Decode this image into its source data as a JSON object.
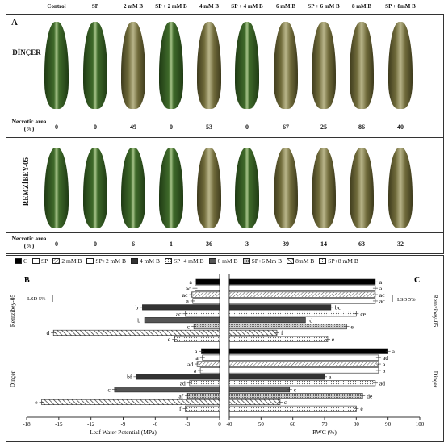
{
  "columns": [
    "Control",
    "SP",
    "2 mM B",
    "SP + 2 mM B",
    "4 mM B",
    "SP + 4 mM B",
    "6 mM B",
    "SP + 6 mM B",
    "8 mM B",
    "SP + 8mM B"
  ],
  "panel_a": {
    "label": "A",
    "rows": [
      {
        "name": "DİNÇER",
        "necrotic_label": "Necrotic area (%)",
        "values": [
          "0",
          "0",
          "49",
          "0",
          "53",
          "0",
          "67",
          "25",
          "86",
          "40"
        ]
      },
      {
        "name": "REMZİBEY-05",
        "necrotic_label": "Necrotic area (%)",
        "values": [
          "0",
          "0",
          "6",
          "1",
          "36",
          "3",
          "39",
          "14",
          "63",
          "32"
        ]
      }
    ]
  },
  "legend": [
    "C",
    "SP",
    "2 mM B",
    "SP+2 mM B",
    "4 mM B",
    "SP+4 mM B",
    "6 mM B",
    "SP+6 Mm B",
    "8mM B",
    "SP+8 mM B"
  ],
  "panel_b": {
    "label": "B",
    "lsd": "LSD 5%",
    "xlabel": "Leaf Water Potential (MPa)",
    "group_top": "Remzibey-05",
    "group_bottom": "Dinçer"
  },
  "panel_c": {
    "label": "C",
    "lsd": "LSD 5%",
    "xlabel": "RWC (%)",
    "group_top": "Remzibey-05",
    "group_bottom": "Dinçer"
  },
  "chart_data": [
    {
      "type": "bar",
      "title": "B",
      "xlabel": "Leaf Water Potential (MPa)",
      "xlim": [
        -18,
        0
      ],
      "xticks": [
        "-18",
        "-15",
        "-12",
        "-9",
        "-6",
        "-3",
        "0"
      ],
      "categories": [
        "C",
        "SP",
        "2 mM B",
        "SP+2 mM B",
        "4 mM B",
        "SP+4 mM B",
        "6 mM B",
        "SP+6 Mm B",
        "8mM B",
        "SP+8 mM B"
      ],
      "series": [
        {
          "name": "Remzibey-05",
          "values": [
            -2.2,
            -2.3,
            -2.6,
            -2.5,
            -7.2,
            -3.2,
            -7.0,
            -2.4,
            -15.5,
            -4.2
          ],
          "letters": [
            "a",
            "ac",
            "ac",
            "a",
            "b",
            "ac",
            "b",
            "c",
            "d",
            "e"
          ]
        },
        {
          "name": "Dinçer",
          "values": [
            -1.7,
            -1.6,
            -2.1,
            -1.8,
            -7.8,
            -2.8,
            -9.8,
            -3.0,
            -16.6,
            -3.2
          ],
          "letters": [
            "a",
            "a",
            "ad",
            "a",
            "bf",
            "ad",
            "c",
            "af",
            "e",
            "f"
          ]
        }
      ]
    },
    {
      "type": "bar",
      "title": "C",
      "xlabel": "RWC (%)",
      "xlim": [
        40,
        100
      ],
      "xticks": [
        "40",
        "50",
        "60",
        "70",
        "80",
        "90",
        "100"
      ],
      "categories": [
        "C",
        "SP",
        "2 mM B",
        "SP+2 mM B",
        "4 mM B",
        "SP+4 mM B",
        "6 mM B",
        "SP+6 Mm B",
        "8mM B",
        "SP+8 mM B"
      ],
      "series": [
        {
          "name": "Remzibey-05",
          "values": [
            86,
            86,
            86,
            86,
            72,
            80,
            64,
            77,
            55,
            71
          ],
          "letters": [
            "a",
            "a",
            "ac",
            "ac",
            "bc",
            "ce",
            "d",
            "e",
            "f",
            "e"
          ]
        },
        {
          "name": "Dinçer",
          "values": [
            90,
            87,
            87,
            87,
            70,
            86,
            59,
            82,
            56,
            80
          ],
          "letters": [
            "a",
            "ad",
            "a",
            "a",
            "a",
            "ad",
            "c",
            "de",
            "c",
            "e"
          ]
        }
      ]
    }
  ],
  "colors": {
    "c": "#000000",
    "sp": "#ffffff",
    "b2": "#cfcfcf",
    "spb2": "#ffffff",
    "b4": "#333333",
    "spb4": "#f2f2f2",
    "b6": "#444444",
    "spb6": "#dddddd",
    "b8": "#bbbbbb",
    "spb8": "#eeeeee"
  }
}
